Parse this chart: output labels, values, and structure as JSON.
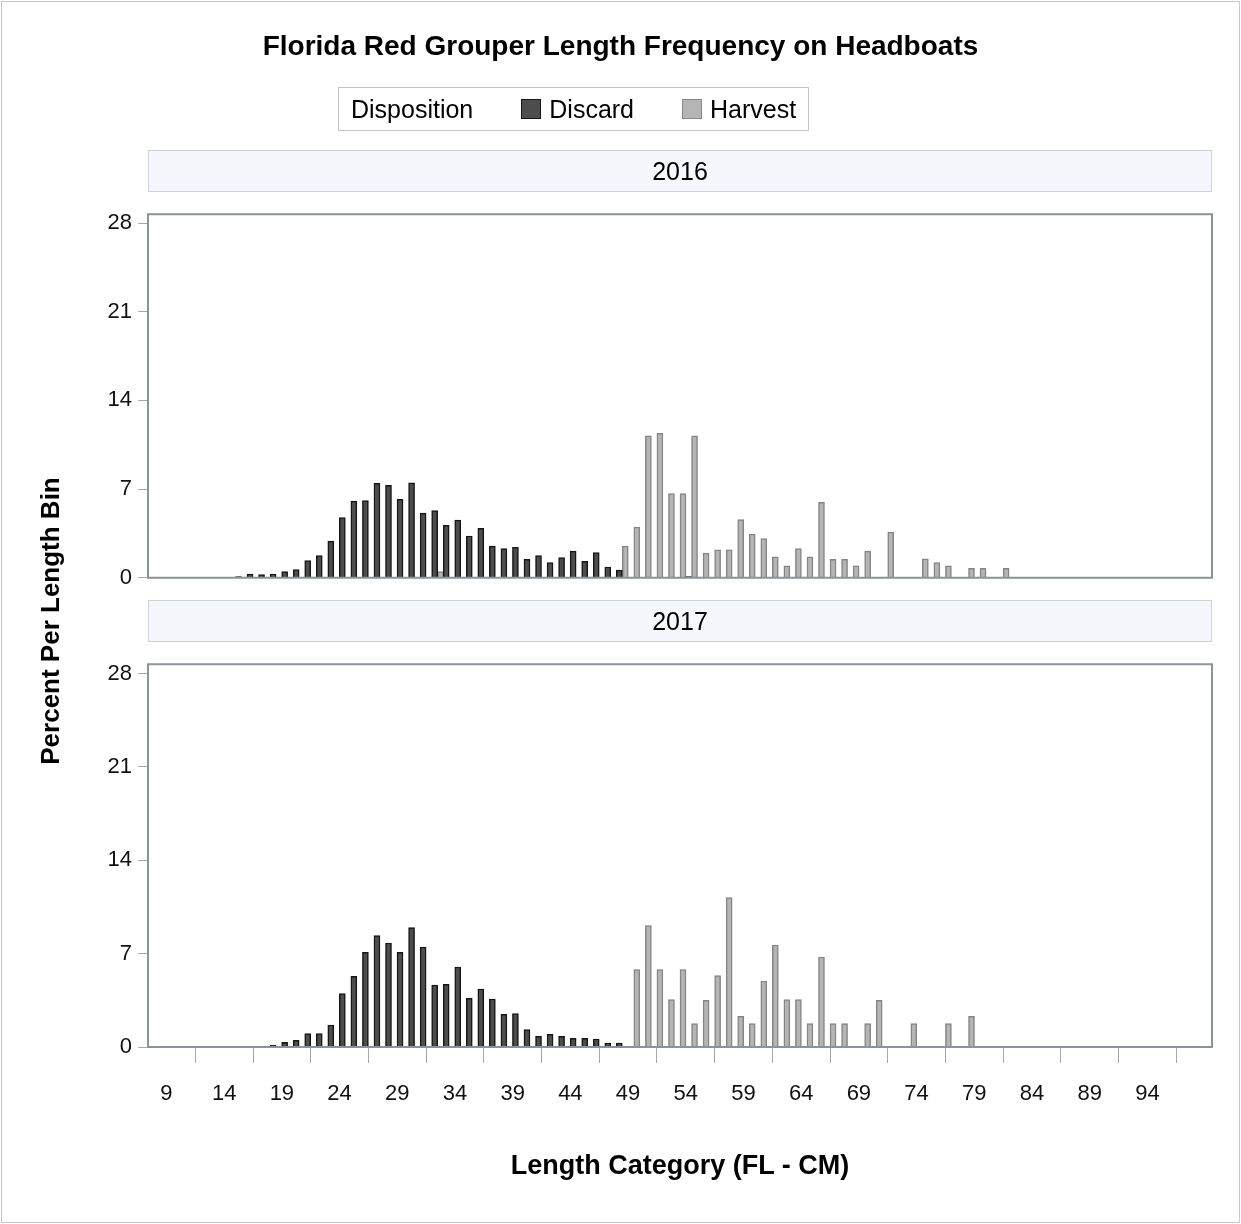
{
  "chart_data": [
    {
      "type": "bar",
      "title": "Florida Red Grouper Length Frequency on Headboats",
      "subtitle": "2016",
      "ylabel": "Percent Per Length Bin",
      "legend_title": "Disposition",
      "legend": "top",
      "tick_labels": "y",
      "xlim": [
        7.4,
        99.6
      ],
      "xticks": [
        9,
        14,
        19,
        24,
        29,
        34,
        39,
        44,
        49,
        54,
        59,
        64,
        69,
        74,
        79,
        84,
        89,
        94
      ],
      "ylim": [
        0,
        28.7
      ],
      "yticks": [
        0,
        7,
        14,
        21,
        28
      ],
      "series": [
        {
          "name": "Discard",
          "color": "#4d4d4d",
          "x": [
            15.5,
            16.5,
            17.5,
            18.5,
            19.5,
            20.5,
            21.5,
            22.5,
            23.5,
            24.5,
            25.5,
            26.5,
            27.5,
            28.5,
            29.5,
            30.5,
            31.5,
            32.5,
            33.5,
            34.5,
            35.5,
            36.5,
            37.5,
            38.5,
            39.5,
            40.5,
            41.5,
            42.5,
            43.5,
            44.5,
            45.5,
            46.5,
            47.5,
            48.5,
            54.5
          ],
          "values": [
            0.1,
            0.3,
            0.25,
            0.3,
            0.5,
            0.65,
            1.35,
            1.75,
            2.9,
            4.75,
            6.05,
            6.1,
            7.45,
            7.3,
            6.2,
            7.5,
            5.1,
            5.3,
            4.15,
            4.55,
            3.3,
            3.9,
            2.5,
            2.3,
            2.4,
            1.45,
            1.75,
            1.2,
            1.6,
            2.1,
            1.3,
            2.0,
            0.85,
            0.6,
            0.1
          ]
        },
        {
          "name": "Harvest",
          "color": "#b5b5b5",
          "x": [
            32.5,
            48.5,
            49.5,
            50.5,
            51.5,
            52.5,
            53.5,
            54.5,
            55.5,
            56.5,
            57.5,
            58.5,
            59.5,
            60.5,
            61.5,
            62.5,
            63.5,
            64.5,
            65.5,
            66.5,
            67.5,
            68.5,
            69.5,
            71.5,
            74.5,
            75.5,
            76.5,
            78.5,
            79.5,
            81.5
          ],
          "values": [
            0.5,
            2.5,
            4.0,
            11.2,
            11.4,
            6.65,
            6.65,
            11.2,
            1.95,
            2.2,
            2.2,
            4.6,
            3.45,
            3.1,
            1.65,
            0.95,
            2.3,
            1.65,
            5.95,
            1.45,
            1.45,
            0.95,
            2.1,
            3.6,
            1.5,
            1.2,
            0.95,
            0.75,
            0.75,
            0.75
          ]
        }
      ]
    },
    {
      "type": "bar",
      "subtitle": "2017",
      "xlabel": "Length Category (FL - CM)",
      "xlim": [
        7.4,
        99.6
      ],
      "xticks": [
        9,
        14,
        19,
        24,
        29,
        34,
        39,
        44,
        49,
        54,
        59,
        64,
        69,
        74,
        79,
        84,
        89,
        94
      ],
      "ylim": [
        0,
        28.7
      ],
      "yticks": [
        0,
        7,
        14,
        21,
        28
      ],
      "series": [
        {
          "color": "#4d4d4d",
          "x": [
            15.5,
            18.5,
            19.5,
            20.5,
            21.5,
            22.5,
            23.5,
            24.5,
            25.5,
            26.5,
            27.5,
            28.5,
            29.5,
            30.5,
            31.5,
            32.5,
            33.5,
            34.5,
            35.5,
            36.5,
            37.5,
            38.5,
            39.5,
            40.5,
            41.5,
            42.5,
            43.5,
            44.5,
            45.5,
            46.5,
            47.5,
            48.5
          ],
          "values": [
            0.05,
            0.15,
            0.35,
            0.5,
            1.0,
            1.0,
            1.65,
            4.0,
            5.3,
            7.1,
            8.35,
            7.8,
            7.1,
            8.95,
            7.5,
            4.65,
            4.7,
            6.0,
            3.65,
            4.35,
            3.6,
            2.45,
            2.5,
            1.3,
            0.8,
            0.95,
            0.8,
            0.65,
            0.65,
            0.6,
            0.3,
            0.3
          ]
        },
        {
          "color": "#b5b5b5",
          "x": [
            49.5,
            50.5,
            51.5,
            52.5,
            53.5,
            54.5,
            55.5,
            56.5,
            57.5,
            58.5,
            59.5,
            60.5,
            61.5,
            62.5,
            63.5,
            64.5,
            65.5,
            66.5,
            67.5,
            69.5,
            70.5,
            73.5,
            76.5,
            78.5
          ],
          "values": [
            5.8,
            9.1,
            5.8,
            3.55,
            5.8,
            1.75,
            3.5,
            5.35,
            11.2,
            2.3,
            1.75,
            4.95,
            7.65,
            3.55,
            3.55,
            1.75,
            6.75,
            1.75,
            1.75,
            1.75,
            3.5,
            1.75,
            1.75,
            2.3
          ]
        }
      ]
    }
  ]
}
